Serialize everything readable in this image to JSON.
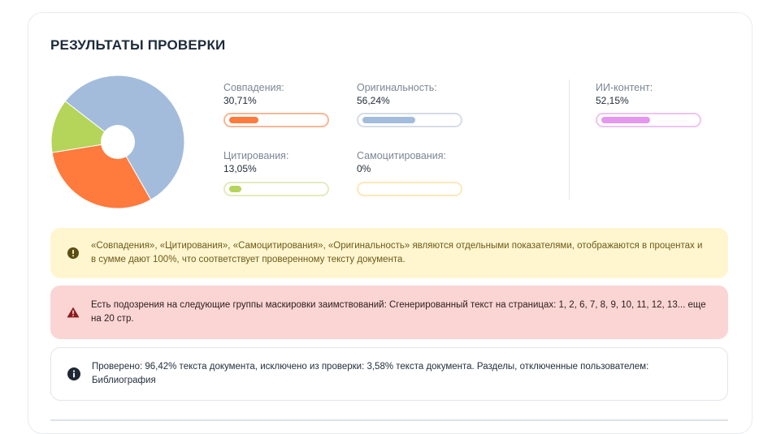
{
  "title": "РЕЗУЛЬТАТЫ ПРОВЕРКИ",
  "colors": {
    "matches": "#ff7a3d",
    "originality": "#a3bcdc",
    "citations": "#b5d45a",
    "self_citations": "#ffe6a6",
    "ai": "#e596ef"
  },
  "metrics": {
    "matches": {
      "label": "Совпадения:",
      "value": "30,71%",
      "percent": 30.71
    },
    "originality": {
      "label": "Оригинальность:",
      "value": "56,24%",
      "percent": 56.24
    },
    "citations": {
      "label": "Цитирования:",
      "value": "13,05%",
      "percent": 13.05
    },
    "self_citations": {
      "label": "Самоцитирования:",
      "value": "0%",
      "percent": 0
    },
    "ai": {
      "label": "ИИ-контент:",
      "value": "52,15%",
      "percent": 52.15
    }
  },
  "pie_segments": [
    {
      "name": "originality",
      "percent": 56.24,
      "color": "#a3bcdc"
    },
    {
      "name": "matches",
      "percent": 30.71,
      "color": "#ff7a3d"
    },
    {
      "name": "citations",
      "percent": 13.05,
      "color": "#b5d45a"
    }
  ],
  "alerts": {
    "note": "«Совпадения», «Цитирования», «Самоцитирования», «Оригинальность» являются отдельными показателями, отображаются в процентах и в сумме дают 100%, что соответствует проверенному тексту документа.",
    "warning": "Есть подозрения на следующие группы маскировки заимствований:  Сгенерированный текст на страницах: 1, 2, 6, 7, 8, 9, 10, 11, 12, 13... еще на 20 стр.",
    "info": "Проверено: 96,42% текста документа, исключено из проверки: 3,58% текста документа. Разделы, отключенные пользователем: Библиография"
  }
}
